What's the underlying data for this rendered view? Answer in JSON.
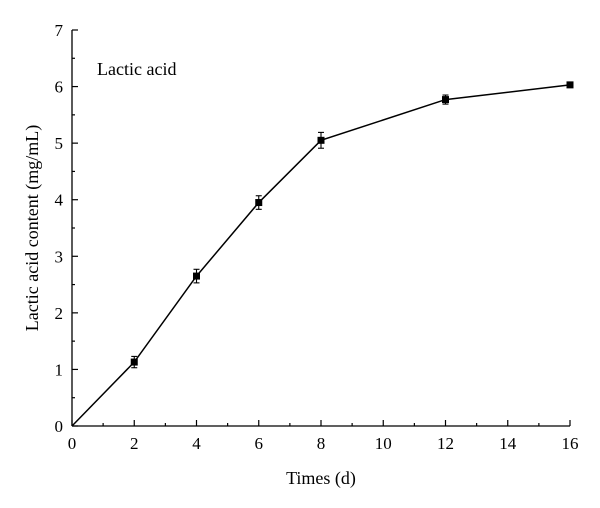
{
  "chart_data": {
    "type": "line",
    "annotation": "Lactic acid",
    "xlabel": "Times (d)",
    "ylabel": "Lactic acid content (mg/mL)",
    "xlim": [
      0,
      16
    ],
    "ylim": [
      0,
      7
    ],
    "xticks": [
      "0",
      "2",
      "4",
      "6",
      "8",
      "10",
      "12",
      "14",
      "16"
    ],
    "yticks": [
      "0",
      "1",
      "2",
      "3",
      "4",
      "5",
      "6",
      "7"
    ],
    "grid": false,
    "series": [
      {
        "x": [
          0,
          2,
          4,
          6,
          8,
          12,
          16
        ],
        "y": [
          0,
          1.13,
          2.65,
          3.95,
          5.05,
          5.77,
          6.03
        ],
        "error": [
          0,
          0.1,
          0.12,
          0.12,
          0.14,
          0.08,
          0.04
        ],
        "marker": "square",
        "color": "#000000"
      }
    ]
  }
}
